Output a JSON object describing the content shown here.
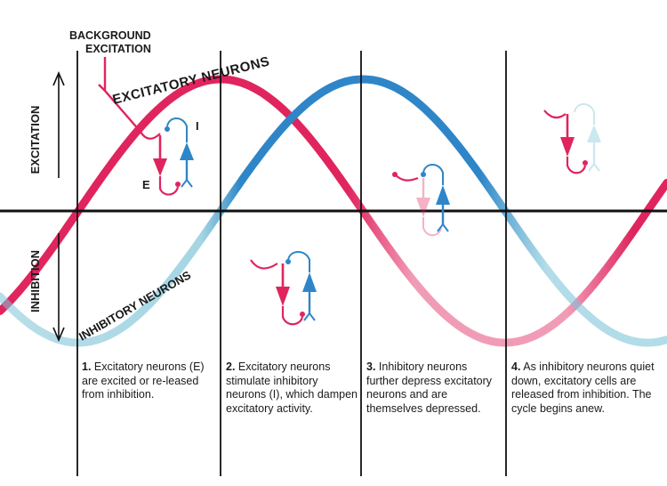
{
  "labels": {
    "background_excitation_1": "BACKGROUND",
    "background_excitation_2": "EXCITATION",
    "excitatory_neurons": "EXCITATORY NEURONS",
    "inhibitory_neurons": "INHIBITORY NEURONS",
    "excitation_axis": "EXCITATION",
    "inhibition_axis": "INHIBITION",
    "cell_e": "E",
    "cell_i": "I"
  },
  "colors": {
    "excitatory": "#e0245e",
    "inhibitory": "#2e86c8",
    "line": "#111111"
  },
  "panels": [
    {
      "num": "1.",
      "text": "Excitatory neurons (E) are excited or re-leased from inhibition."
    },
    {
      "num": "2.",
      "text": "Excitatory neurons stimulate inhibitory neurons (I), which dampen excitatory activity."
    },
    {
      "num": "3.",
      "text": "Inhibitory neurons further depress excitatory neurons and are themselves depressed."
    },
    {
      "num": "4.",
      "text": "As inhibitory neurons quiet down, excitatory cells are released from inhibition. The cycle begins anew."
    }
  ]
}
